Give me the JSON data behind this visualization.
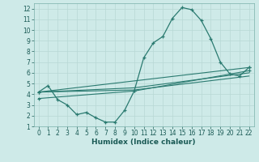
{
  "bg_color": "#ceeae8",
  "line_color": "#2a7a70",
  "grid_color": "#b8d8d5",
  "xlabel": "Humidex (Indice chaleur)",
  "xlim": [
    -0.5,
    22.5
  ],
  "ylim": [
    1,
    12.5
  ],
  "xticks": [
    0,
    1,
    2,
    3,
    4,
    5,
    6,
    7,
    8,
    9,
    10,
    11,
    12,
    13,
    14,
    15,
    16,
    17,
    18,
    19,
    20,
    21,
    22
  ],
  "yticks": [
    1,
    2,
    3,
    4,
    5,
    6,
    7,
    8,
    9,
    10,
    11,
    12
  ],
  "series1_x": [
    0,
    1,
    2,
    3,
    4,
    5,
    6,
    7,
    8,
    9,
    10,
    11,
    12,
    13,
    14,
    15,
    16,
    17,
    18,
    19,
    20,
    21,
    22
  ],
  "series1_y": [
    4.2,
    4.8,
    3.5,
    3.0,
    2.1,
    2.3,
    1.8,
    1.4,
    1.4,
    2.5,
    4.3,
    7.4,
    8.8,
    9.4,
    11.1,
    12.1,
    11.9,
    10.9,
    9.2,
    7.0,
    5.9,
    5.7,
    6.5
  ],
  "line2_x": [
    0,
    22
  ],
  "line2_y": [
    4.2,
    6.5
  ],
  "line3_x": [
    0,
    10,
    22
  ],
  "line3_y": [
    3.6,
    4.3,
    6.2
  ],
  "line4_x": [
    0,
    10,
    22
  ],
  "line4_y": [
    4.2,
    4.6,
    6.0
  ],
  "line5_x": [
    0,
    10,
    22
  ],
  "line5_y": [
    4.2,
    4.4,
    5.7
  ]
}
